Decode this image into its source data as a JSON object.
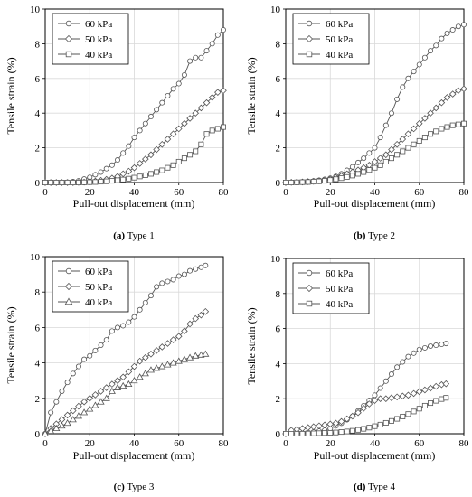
{
  "chart_data": [
    {
      "type": "line",
      "caption_letter": "(a)",
      "caption_text": " Type 1",
      "xlabel": "Pull-out displacement (mm)",
      "ylabel": "Tensile strain (%)",
      "xlim": [
        0,
        80
      ],
      "ylim": [
        0,
        10
      ],
      "xticks": [
        "0",
        "20",
        "40",
        "60",
        "80"
      ],
      "yticks": [
        "0",
        "2",
        "4",
        "6",
        "8",
        "10"
      ],
      "legend_position": "top-left",
      "series": [
        {
          "name": "60 kPa",
          "marker": "circle",
          "x": [
            0,
            2.5,
            5,
            7.5,
            10,
            12.5,
            15,
            17.5,
            20,
            22.5,
            25,
            27.5,
            30,
            32.5,
            35,
            37.5,
            40,
            42.5,
            45,
            47.5,
            50,
            52.5,
            55,
            57.5,
            60,
            62.5,
            65,
            67.5,
            70,
            72.5,
            75,
            77.5,
            80
          ],
          "y": [
            0,
            0,
            0,
            0.01,
            0.02,
            0.05,
            0.1,
            0.2,
            0.3,
            0.45,
            0.6,
            0.8,
            1.0,
            1.3,
            1.7,
            2.1,
            2.6,
            3.0,
            3.4,
            3.8,
            4.2,
            4.6,
            5.0,
            5.4,
            5.7,
            6.2,
            7.0,
            7.2,
            7.2,
            7.6,
            8.0,
            8.5,
            8.8
          ]
        },
        {
          "name": "50 kPa",
          "marker": "diamond",
          "x": [
            0,
            2.5,
            5,
            7.5,
            10,
            12.5,
            15,
            17.5,
            20,
            22.5,
            25,
            27.5,
            30,
            32.5,
            35,
            37.5,
            40,
            42.5,
            45,
            47.5,
            50,
            52.5,
            55,
            57.5,
            60,
            62.5,
            65,
            67.5,
            70,
            72.5,
            75,
            77.5,
            80
          ],
          "y": [
            0,
            0,
            0,
            0,
            0,
            0,
            0.01,
            0.02,
            0.05,
            0.08,
            0.12,
            0.18,
            0.25,
            0.35,
            0.5,
            0.65,
            0.85,
            1.1,
            1.35,
            1.6,
            1.9,
            2.2,
            2.5,
            2.8,
            3.1,
            3.4,
            3.7,
            4.0,
            4.3,
            4.6,
            4.9,
            5.2,
            5.3
          ]
        },
        {
          "name": "40 kPa",
          "marker": "square",
          "x": [
            0,
            2.5,
            5,
            7.5,
            10,
            12.5,
            15,
            17.5,
            20,
            22.5,
            25,
            27.5,
            30,
            32.5,
            35,
            37.5,
            40,
            42.5,
            45,
            47.5,
            50,
            52.5,
            55,
            57.5,
            60,
            62.5,
            65,
            67.5,
            70,
            72.5,
            75,
            77.5,
            80
          ],
          "y": [
            0,
            0,
            0,
            0,
            0,
            0,
            0,
            0.01,
            0.02,
            0.03,
            0.05,
            0.07,
            0.1,
            0.13,
            0.17,
            0.22,
            0.28,
            0.35,
            0.42,
            0.5,
            0.6,
            0.7,
            0.85,
            1.0,
            1.2,
            1.4,
            1.6,
            1.8,
            2.2,
            2.8,
            3.0,
            3.1,
            3.2
          ]
        }
      ]
    },
    {
      "type": "line",
      "caption_letter": "(b)",
      "caption_text": " Type 2",
      "xlabel": "Pull-out displacement (mm)",
      "ylabel": "Tensile strain (%)",
      "xlim": [
        0,
        80
      ],
      "ylim": [
        0,
        10
      ],
      "xticks": [
        "0",
        "20",
        "40",
        "60",
        "80"
      ],
      "yticks": [
        "0",
        "2",
        "4",
        "6",
        "8",
        "10"
      ],
      "legend_position": "top-left",
      "series": [
        {
          "name": "60 kPa",
          "marker": "circle",
          "x": [
            0,
            2.5,
            5,
            7.5,
            10,
            12.5,
            15,
            17.5,
            20,
            22.5,
            25,
            27.5,
            30,
            32.5,
            35,
            37.5,
            40,
            42.5,
            45,
            47.5,
            50,
            52.5,
            55,
            57.5,
            60,
            62.5,
            65,
            67.5,
            70,
            72.5,
            75,
            77.5,
            80
          ],
          "y": [
            0,
            0.01,
            0.02,
            0.04,
            0.06,
            0.09,
            0.13,
            0.18,
            0.25,
            0.35,
            0.5,
            0.7,
            0.9,
            1.15,
            1.4,
            1.7,
            2.0,
            2.6,
            3.3,
            4.0,
            4.8,
            5.5,
            6.0,
            6.4,
            6.8,
            7.2,
            7.6,
            7.9,
            8.3,
            8.6,
            8.8,
            9.0,
            9.1
          ]
        },
        {
          "name": "50 kPa",
          "marker": "diamond",
          "x": [
            0,
            2.5,
            5,
            7.5,
            10,
            12.5,
            15,
            17.5,
            20,
            22.5,
            25,
            27.5,
            30,
            32.5,
            35,
            37.5,
            40,
            42.5,
            45,
            47.5,
            50,
            52.5,
            55,
            57.5,
            60,
            62.5,
            65,
            67.5,
            70,
            72.5,
            75,
            77.5,
            80
          ],
          "y": [
            0,
            0.01,
            0.02,
            0.03,
            0.05,
            0.07,
            0.1,
            0.15,
            0.2,
            0.28,
            0.38,
            0.5,
            0.6,
            0.72,
            0.85,
            1.0,
            1.2,
            1.4,
            1.6,
            1.9,
            2.2,
            2.5,
            2.8,
            3.1,
            3.4,
            3.7,
            4.0,
            4.3,
            4.6,
            4.9,
            5.1,
            5.3,
            5.4
          ]
        },
        {
          "name": "40 kPa",
          "marker": "square",
          "x": [
            0,
            2.5,
            5,
            7.5,
            10,
            12.5,
            15,
            17.5,
            20,
            22.5,
            25,
            27.5,
            30,
            32.5,
            35,
            37.5,
            40,
            42.5,
            45,
            47.5,
            50,
            52.5,
            55,
            57.5,
            60,
            62.5,
            65,
            67.5,
            70,
            72.5,
            75,
            77.5,
            80
          ],
          "y": [
            0,
            0,
            0.01,
            0.02,
            0.03,
            0.05,
            0.07,
            0.1,
            0.14,
            0.19,
            0.25,
            0.32,
            0.4,
            0.5,
            0.6,
            0.72,
            0.85,
            1.0,
            1.2,
            1.4,
            1.6,
            1.8,
            2.0,
            2.2,
            2.4,
            2.6,
            2.8,
            2.95,
            3.1,
            3.2,
            3.3,
            3.35,
            3.4
          ]
        }
      ]
    },
    {
      "type": "line",
      "caption_letter": "(c)",
      "caption_text": " Type 3",
      "xlabel": "Pull-out displacement (mm)",
      "ylabel": "Tensile strain (%)",
      "xlim": [
        0,
        80
      ],
      "ylim": [
        0,
        10
      ],
      "xticks": [
        "0",
        "20",
        "40",
        "60",
        "80"
      ],
      "yticks": [
        "0",
        "2",
        "4",
        "6",
        "8",
        "10"
      ],
      "legend_position": "top-left",
      "series": [
        {
          "name": "60 kPa",
          "marker": "circle",
          "x": [
            0,
            2.5,
            5,
            7.5,
            10,
            12.5,
            15,
            17.5,
            20,
            22.5,
            25,
            27.5,
            30,
            32.5,
            35,
            37.5,
            40,
            42.5,
            45,
            47.5,
            50,
            52.5,
            55,
            57.5,
            60,
            62.5,
            65,
            67.5,
            70,
            72
          ],
          "y": [
            0,
            1.2,
            1.8,
            2.4,
            2.9,
            3.4,
            3.8,
            4.2,
            4.4,
            4.7,
            5.0,
            5.3,
            5.8,
            6.0,
            6.1,
            6.3,
            6.6,
            7.0,
            7.4,
            7.8,
            8.3,
            8.5,
            8.6,
            8.7,
            8.9,
            9.0,
            9.2,
            9.3,
            9.4,
            9.5
          ]
        },
        {
          "name": "50 kPa",
          "marker": "diamond",
          "x": [
            0,
            2.5,
            5,
            7.5,
            10,
            12.5,
            15,
            17.5,
            20,
            22.5,
            25,
            27.5,
            30,
            32.5,
            35,
            37.5,
            40,
            42.5,
            45,
            47.5,
            50,
            52.5,
            55,
            57.5,
            60,
            62.5,
            65,
            67.5,
            70,
            72
          ],
          "y": [
            0,
            0.3,
            0.55,
            0.8,
            1.05,
            1.3,
            1.55,
            1.8,
            2.0,
            2.2,
            2.4,
            2.6,
            2.8,
            3.0,
            3.2,
            3.5,
            3.8,
            4.1,
            4.3,
            4.5,
            4.7,
            4.9,
            5.1,
            5.3,
            5.5,
            5.8,
            6.2,
            6.5,
            6.7,
            6.9
          ]
        },
        {
          "name": "40 kPa",
          "marker": "triangle",
          "x": [
            0,
            2.5,
            5,
            7.5,
            10,
            12.5,
            15,
            17.5,
            20,
            22.5,
            25,
            27.5,
            30,
            32.5,
            35,
            37.5,
            40,
            42.5,
            45,
            47.5,
            50,
            52.5,
            55,
            57.5,
            60,
            62.5,
            65,
            67.5,
            70,
            72
          ],
          "y": [
            0,
            0.15,
            0.3,
            0.45,
            0.6,
            0.8,
            1.0,
            1.2,
            1.4,
            1.6,
            1.8,
            2.0,
            2.4,
            2.6,
            2.7,
            2.8,
            3.0,
            3.2,
            3.4,
            3.6,
            3.7,
            3.8,
            3.9,
            4.0,
            4.1,
            4.2,
            4.3,
            4.4,
            4.45,
            4.5
          ]
        }
      ]
    },
    {
      "type": "line",
      "caption_letter": "(d)",
      "caption_text": " Type 4",
      "xlabel": "Pull-out displacement (mm)",
      "ylabel": "Tensile strain (%)",
      "xlim": [
        0,
        80
      ],
      "ylim": [
        0,
        10
      ],
      "xticks": [
        "0",
        "20",
        "40",
        "60",
        "80"
      ],
      "yticks": [
        "0",
        "2",
        "4",
        "6",
        "8",
        "10"
      ],
      "legend_position": "top-left",
      "series": [
        {
          "name": "60 kPa",
          "marker": "circle",
          "x": [
            0,
            2.5,
            5,
            7.5,
            10,
            12.5,
            15,
            17.5,
            20,
            22.5,
            25,
            27.5,
            30,
            32.5,
            35,
            37.5,
            40,
            42.5,
            45,
            47.5,
            50,
            52.5,
            55,
            57.5,
            60,
            62.5,
            65,
            67.5,
            70,
            72
          ],
          "y": [
            0,
            0,
            0.02,
            0.04,
            0.07,
            0.1,
            0.15,
            0.2,
            0.3,
            0.45,
            0.6,
            0.8,
            1.0,
            1.3,
            1.6,
            1.9,
            2.2,
            2.6,
            3.0,
            3.4,
            3.8,
            4.1,
            4.4,
            4.6,
            4.8,
            4.9,
            5.0,
            5.05,
            5.1,
            5.15
          ]
        },
        {
          "name": "50 kPa",
          "marker": "diamond",
          "x": [
            0,
            2.5,
            5,
            7.5,
            10,
            12.5,
            15,
            17.5,
            20,
            22.5,
            25,
            27.5,
            30,
            32.5,
            35,
            37.5,
            40,
            42.5,
            45,
            47.5,
            50,
            52.5,
            55,
            57.5,
            60,
            62.5,
            65,
            67.5,
            70,
            72
          ],
          "y": [
            0,
            0.2,
            0.25,
            0.3,
            0.35,
            0.4,
            0.45,
            0.5,
            0.55,
            0.6,
            0.7,
            0.85,
            1.0,
            1.2,
            1.45,
            1.7,
            1.9,
            2.0,
            2.0,
            2.05,
            2.1,
            2.15,
            2.2,
            2.3,
            2.4,
            2.5,
            2.6,
            2.7,
            2.8,
            2.85
          ]
        },
        {
          "name": "40 kPa",
          "marker": "square",
          "x": [
            0,
            2.5,
            5,
            7.5,
            10,
            12.5,
            15,
            17.5,
            20,
            22.5,
            25,
            27.5,
            30,
            32.5,
            35,
            37.5,
            40,
            42.5,
            45,
            47.5,
            50,
            52.5,
            55,
            57.5,
            60,
            62.5,
            65,
            67.5,
            70,
            72
          ],
          "y": [
            0,
            0,
            0,
            0,
            0.01,
            0.02,
            0.03,
            0.04,
            0.05,
            0.07,
            0.1,
            0.13,
            0.17,
            0.22,
            0.28,
            0.35,
            0.43,
            0.52,
            0.62,
            0.73,
            0.85,
            0.98,
            1.12,
            1.27,
            1.43,
            1.6,
            1.75,
            1.88,
            1.98,
            2.05
          ]
        }
      ]
    }
  ]
}
